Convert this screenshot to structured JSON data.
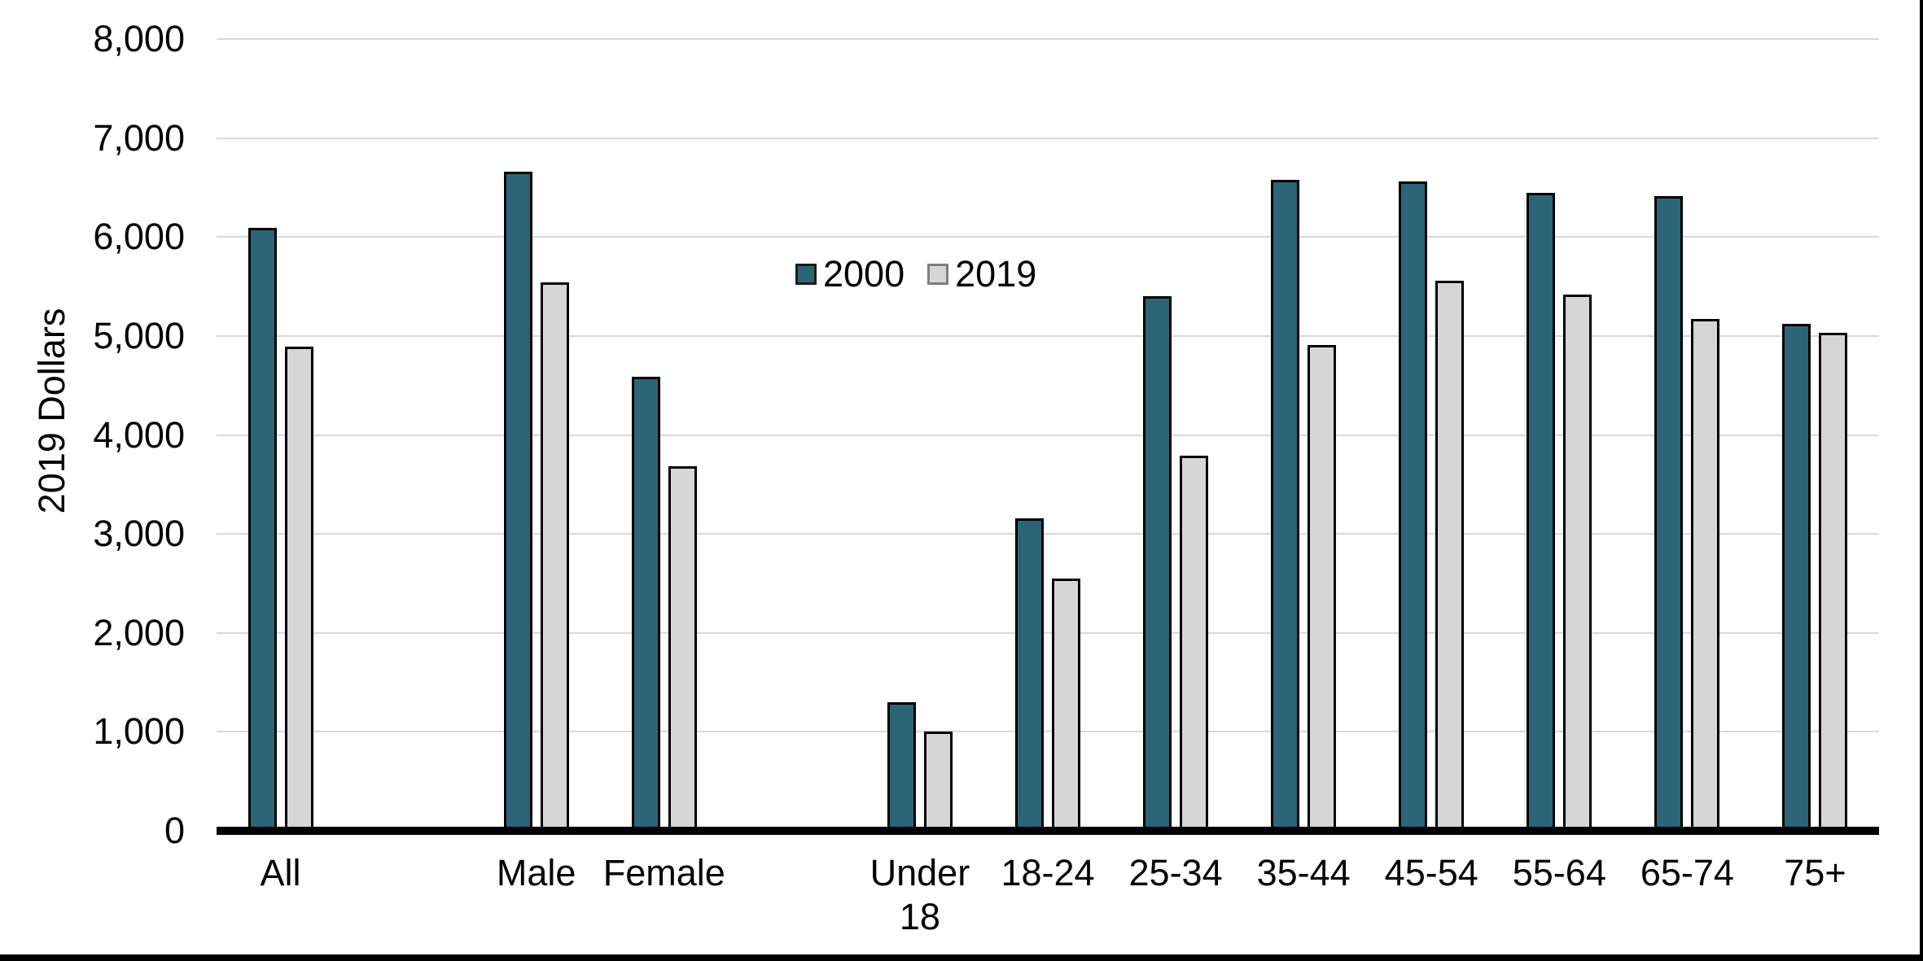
{
  "page": {
    "background": "#ffffff",
    "frame_color": "#000000"
  },
  "chart_data": {
    "type": "bar",
    "title": "",
    "xlabel": "",
    "ylabel": "2019 Dollars",
    "ylim": [
      0,
      8000
    ],
    "ytick_step": 1000,
    "ytick_labels": [
      "0",
      "1,000",
      "2,000",
      "3,000",
      "4,000",
      "5,000",
      "6,000",
      "7,000",
      "8,000"
    ],
    "grid": "horizontal",
    "gridline_color": "#D9D9D9",
    "axis_line_color": "#000000",
    "legend_position": "inside-top-center",
    "categories": [
      "All",
      "Male",
      "Female",
      "Under 18",
      "18-24",
      "25-34",
      "35-44",
      "45-54",
      "55-64",
      "65-74",
      "75+"
    ],
    "category_slots": [
      0,
      2,
      3,
      5,
      6,
      7,
      8,
      9,
      10,
      11,
      12
    ],
    "total_slots": 13,
    "series": [
      {
        "name": "2000",
        "color": "#2B6577",
        "values": [
          6090,
          6660,
          4590,
          1300,
          3160,
          5400,
          6580,
          6560,
          6450,
          6410,
          5120
        ]
      },
      {
        "name": "2019",
        "color": "#D6D6D6",
        "values": [
          4890,
          5540,
          3680,
          1000,
          2550,
          3790,
          4910,
          5560,
          5420,
          5170,
          5030
        ]
      }
    ]
  }
}
